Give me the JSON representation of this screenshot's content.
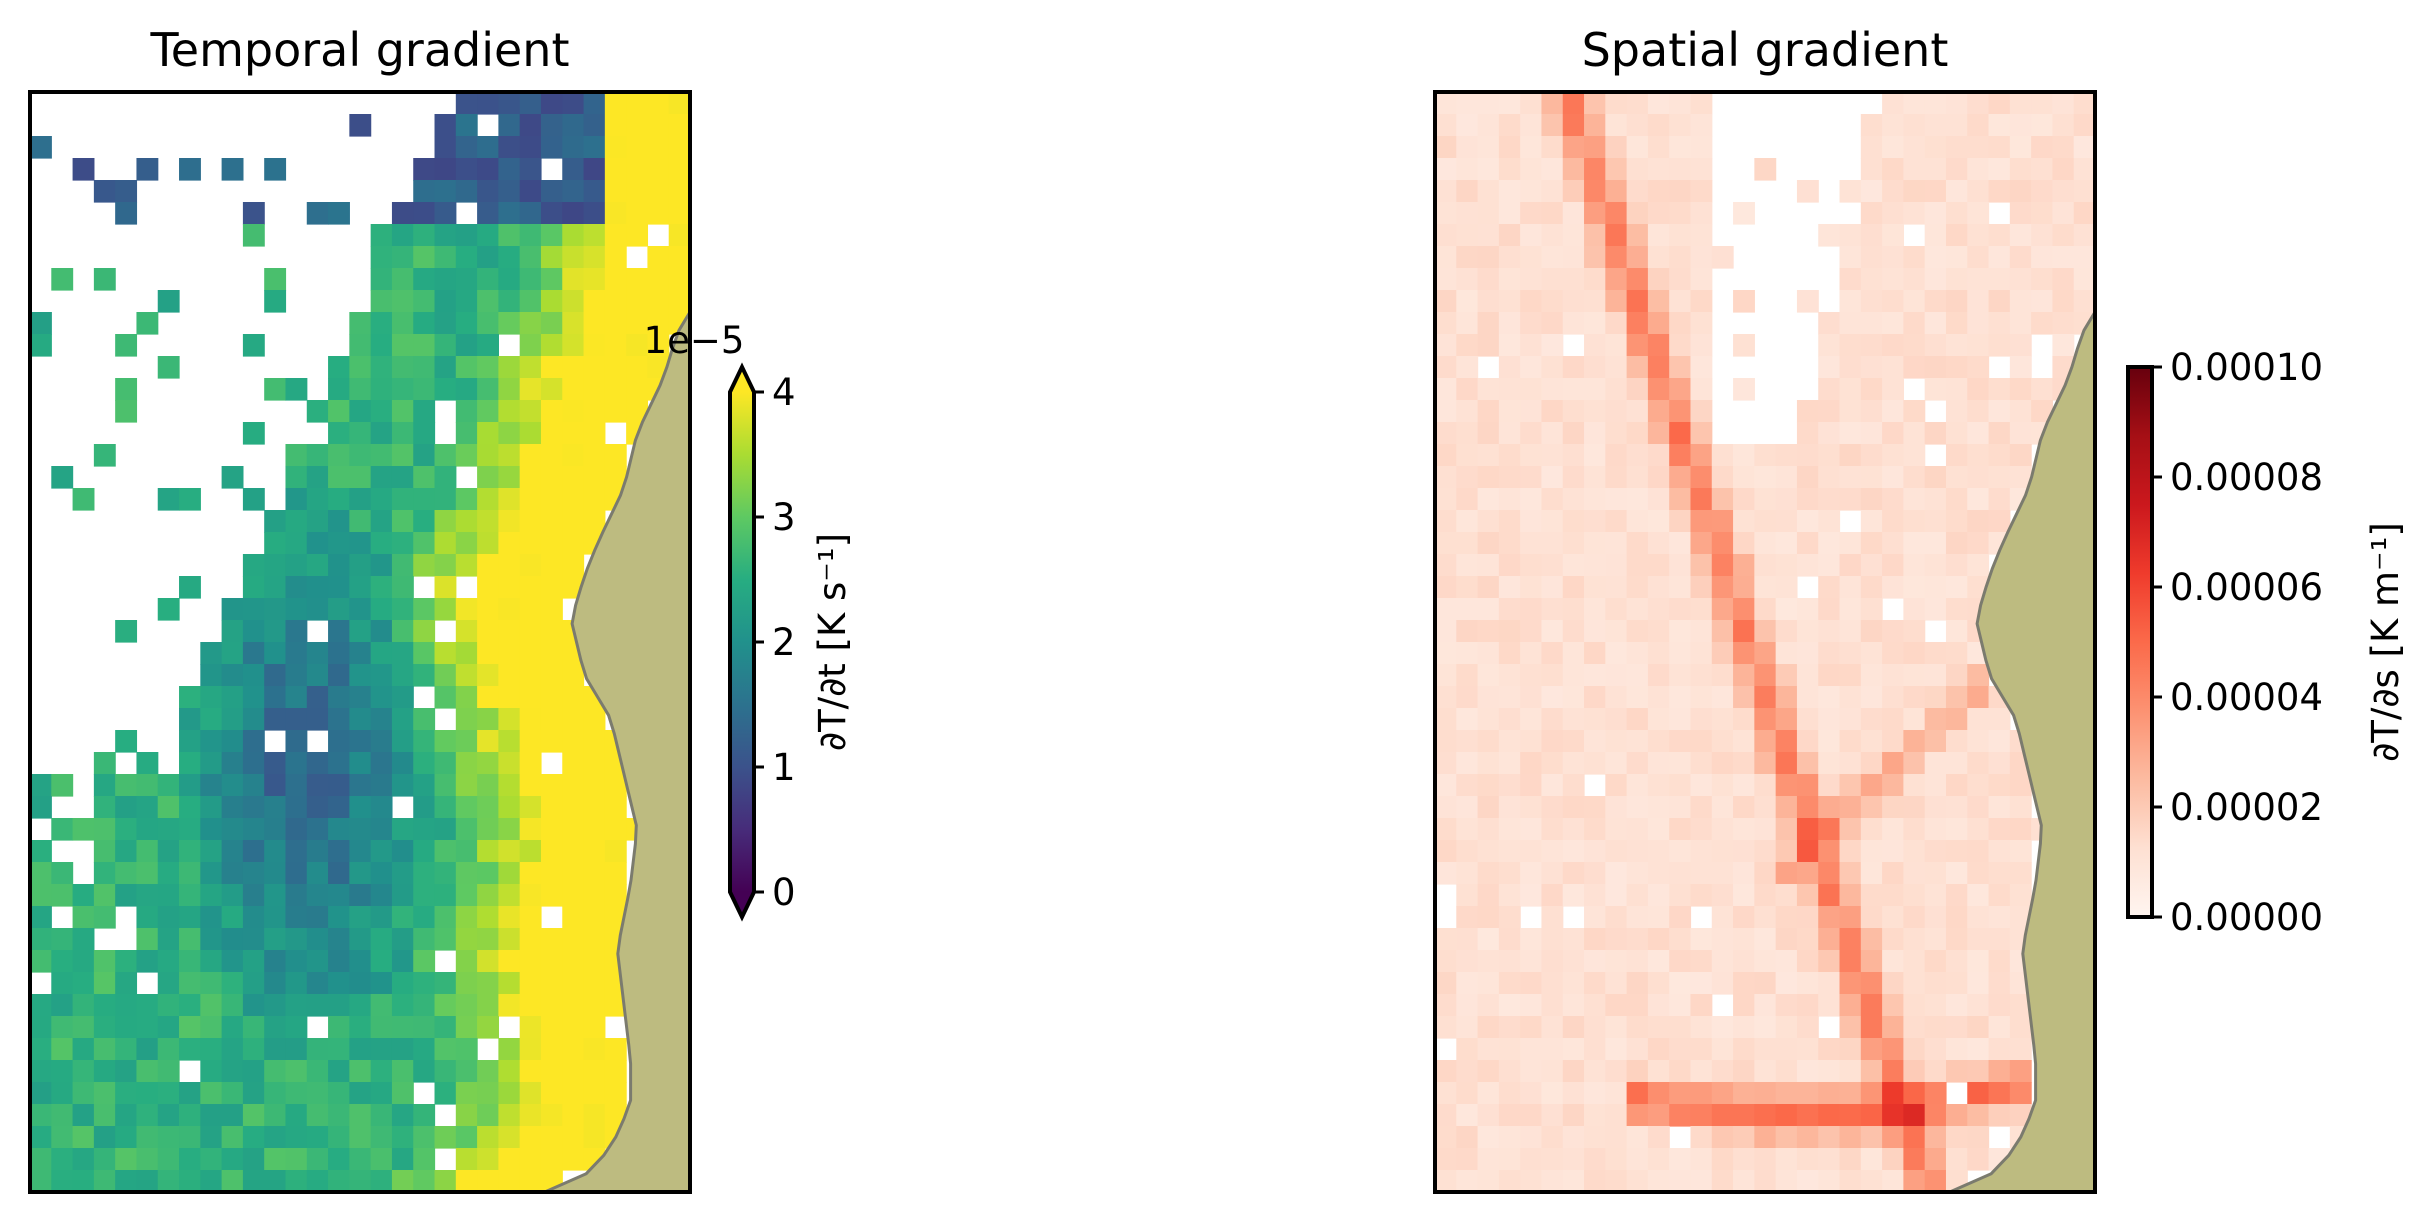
{
  "chart_data": [
    {
      "type": "heatmap",
      "title": "Temporal gradient",
      "colormap": "viridis",
      "land_color": "#bdbb80",
      "coast_color": "#7b7b6e",
      "colorbar": {
        "label": "∂T/∂t [K s⁻¹]",
        "multiplier_label": "1e−5",
        "ticks": [
          "0",
          "1",
          "2",
          "3",
          "4"
        ],
        "range": [
          0,
          4
        ],
        "extend": "both"
      },
      "grid_note": "gridded field approx 31 columns × 50 rows; high values (≥4) concentrated along eastern coast, low values (~1) in central-south region"
    },
    {
      "type": "heatmap",
      "title": "Spatial gradient",
      "colormap": "Reds",
      "land_color": "#bdbb80",
      "coast_color": "#7b7b6e",
      "colorbar": {
        "label": "∂T/∂s [K m⁻¹]",
        "ticks": [
          "0.00000",
          "0.00002",
          "0.00004",
          "0.00006",
          "0.00008",
          "0.00010"
        ],
        "range": [
          0,
          0.0001
        ],
        "extend": "neither"
      },
      "grid_note": "gridded field approx 31 columns × 50 rows; mostly low values with frontal bands up to ~0.00007"
    }
  ]
}
